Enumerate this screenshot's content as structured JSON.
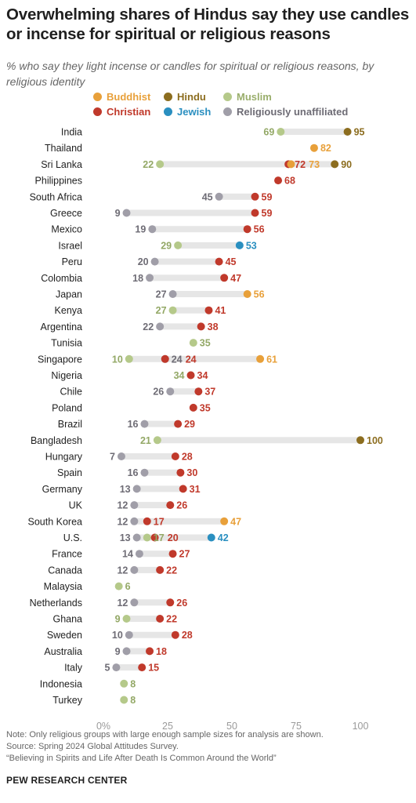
{
  "header": {
    "title": "Overwhelming shares of Hindus say they use candles or incense for spiritual or religious reasons",
    "subtitle": "% who say they light incense or candles for spiritual or religious reasons, by religious identity"
  },
  "notes": {
    "note": "Note: Only religious groups with large enough sample sizes for analysis are shown.",
    "source": "Source: Spring 2024 Global Attitudes Survey.",
    "report": "“Believing in Spirits and Life After Death Is Common Around the World”",
    "footer": "PEW RESEARCH CENTER"
  },
  "chart_data": {
    "type": "dot",
    "title": "Overwhelming shares of Hindus say they use candles or incense for spiritual or religious reasons",
    "xlim": [
      0,
      100
    ],
    "x_ticks": [
      "0%",
      "25",
      "50",
      "75",
      "100"
    ],
    "grid": false,
    "legend_position": "top",
    "series": [
      {
        "key": "buddhist",
        "name": "Buddhist",
        "color": "#e8a03a"
      },
      {
        "key": "hindu",
        "name": "Hindu",
        "color": "#8c6d1f"
      },
      {
        "key": "muslim",
        "name": "Muslim",
        "color": "#b5c98a"
      },
      {
        "key": "christian",
        "name": "Christian",
        "color": "#c0392b"
      },
      {
        "key": "jewish",
        "name": "Jewish",
        "color": "#2a8fc0"
      },
      {
        "key": "unaffiliated",
        "name": "Religiously unaffiliated",
        "color": "#a09ea8"
      }
    ],
    "categories": [
      "India",
      "Thailand",
      "Sri Lanka",
      "Philippines",
      "South Africa",
      "Greece",
      "Mexico",
      "Israel",
      "Peru",
      "Colombia",
      "Japan",
      "Kenya",
      "Argentina",
      "Tunisia",
      "Singapore",
      "Nigeria",
      "Chile",
      "Poland",
      "Brazil",
      "Bangladesh",
      "Hungary",
      "Spain",
      "Germany",
      "UK",
      "South Korea",
      "U.S.",
      "France",
      "Canada",
      "Malaysia",
      "Netherlands",
      "Ghana",
      "Sweden",
      "Australia",
      "Italy",
      "Indonesia",
      "Turkey"
    ],
    "rows": [
      {
        "country": "India",
        "values": {
          "muslim": 69,
          "hindu": 95
        }
      },
      {
        "country": "Thailand",
        "values": {
          "buddhist": 82
        }
      },
      {
        "country": "Sri Lanka",
        "values": {
          "muslim": 22,
          "christian": 72,
          "buddhist": 73,
          "hindu": 90
        }
      },
      {
        "country": "Philippines",
        "values": {
          "christian": 68
        }
      },
      {
        "country": "South Africa",
        "values": {
          "unaffiliated": 45,
          "christian": 59
        }
      },
      {
        "country": "Greece",
        "values": {
          "unaffiliated": 9,
          "christian": 59
        }
      },
      {
        "country": "Mexico",
        "values": {
          "unaffiliated": 19,
          "christian": 56
        }
      },
      {
        "country": "Israel",
        "values": {
          "muslim": 29,
          "jewish": 53
        }
      },
      {
        "country": "Peru",
        "values": {
          "unaffiliated": 20,
          "christian": 45
        }
      },
      {
        "country": "Colombia",
        "values": {
          "unaffiliated": 18,
          "christian": 47
        }
      },
      {
        "country": "Japan",
        "values": {
          "unaffiliated": 27,
          "buddhist": 56
        }
      },
      {
        "country": "Kenya",
        "values": {
          "muslim": 27,
          "christian": 41
        }
      },
      {
        "country": "Argentina",
        "values": {
          "unaffiliated": 22,
          "christian": 38
        }
      },
      {
        "country": "Tunisia",
        "values": {
          "muslim": 35
        }
      },
      {
        "country": "Singapore",
        "values": {
          "muslim": 10,
          "unaffiliated": 24,
          "christian": 24,
          "buddhist": 61
        }
      },
      {
        "country": "Nigeria",
        "values": {
          "muslim": 34,
          "christian": 34
        }
      },
      {
        "country": "Chile",
        "values": {
          "unaffiliated": 26,
          "christian": 37
        }
      },
      {
        "country": "Poland",
        "values": {
          "christian": 35
        }
      },
      {
        "country": "Brazil",
        "values": {
          "unaffiliated": 16,
          "christian": 29
        }
      },
      {
        "country": "Bangladesh",
        "values": {
          "muslim": 21,
          "hindu": 100
        }
      },
      {
        "country": "Hungary",
        "values": {
          "unaffiliated": 7,
          "christian": 28
        }
      },
      {
        "country": "Spain",
        "values": {
          "unaffiliated": 16,
          "christian": 30
        }
      },
      {
        "country": "Germany",
        "values": {
          "unaffiliated": 13,
          "christian": 31
        }
      },
      {
        "country": "UK",
        "values": {
          "unaffiliated": 12,
          "christian": 26
        }
      },
      {
        "country": "South Korea",
        "values": {
          "unaffiliated": 12,
          "christian": 17,
          "buddhist": 47
        }
      },
      {
        "country": "U.S.",
        "values": {
          "unaffiliated": 13,
          "muslim": 17,
          "christian": 20,
          "jewish": 42
        }
      },
      {
        "country": "France",
        "values": {
          "unaffiliated": 14,
          "christian": 27
        }
      },
      {
        "country": "Canada",
        "values": {
          "unaffiliated": 12,
          "christian": 22
        }
      },
      {
        "country": "Malaysia",
        "values": {
          "muslim": 6
        }
      },
      {
        "country": "Netherlands",
        "values": {
          "unaffiliated": 12,
          "christian": 26
        }
      },
      {
        "country": "Ghana",
        "values": {
          "muslim": 9,
          "christian": 22
        }
      },
      {
        "country": "Sweden",
        "values": {
          "unaffiliated": 10,
          "christian": 28
        }
      },
      {
        "country": "Australia",
        "values": {
          "unaffiliated": 9,
          "christian": 18
        }
      },
      {
        "country": "Italy",
        "values": {
          "unaffiliated": 5,
          "christian": 15
        }
      },
      {
        "country": "Indonesia",
        "values": {
          "muslim": 8
        }
      },
      {
        "country": "Turkey",
        "values": {
          "muslim": 8
        }
      }
    ]
  }
}
